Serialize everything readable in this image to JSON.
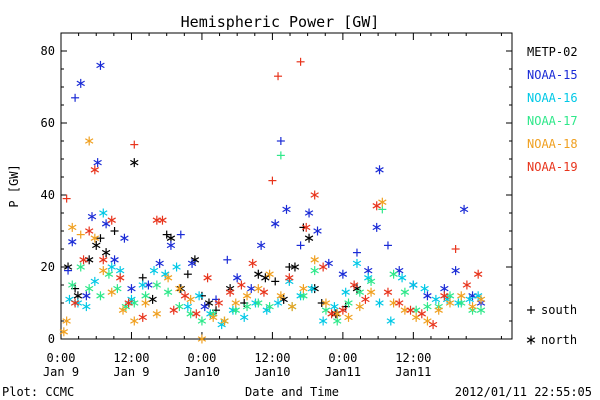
{
  "chart_data": {
    "type": "scatter",
    "title": "Hemispheric Power [GW]",
    "ylabel": "P [GW]",
    "xlabel": "Date and Time",
    "ylim": [
      0,
      85
    ],
    "xlim": [
      0,
      3.2
    ],
    "x_unit": "days since Jan 9 0:00",
    "yticks": [
      "0",
      "20",
      "40",
      "60",
      "80"
    ],
    "yticks_values": [
      0,
      20,
      40,
      60,
      80
    ],
    "xticks": [
      {
        "x": 0.0,
        "time": "0:00",
        "date": "Jan 9"
      },
      {
        "x": 0.5,
        "time": "12:00",
        "date": "Jan 9"
      },
      {
        "x": 1.0,
        "time": "0:00",
        "date": "Jan10"
      },
      {
        "x": 1.5,
        "time": "12:00",
        "date": "Jan10"
      },
      {
        "x": 2.0,
        "time": "0:00",
        "date": "Jan11"
      },
      {
        "x": 2.5,
        "time": "12:00",
        "date": "Jan11"
      }
    ],
    "legend_position": "right",
    "marker_legend": [
      {
        "symbol": "+",
        "label": "south"
      },
      {
        "symbol": "*",
        "label": "north"
      }
    ],
    "series": [
      {
        "name": "METP-02",
        "color": "#000000",
        "points": [
          [
            0.05,
            20,
            "*"
          ],
          [
            0.1,
            14,
            "+"
          ],
          [
            0.12,
            12,
            "*"
          ],
          [
            0.2,
            22,
            "*"
          ],
          [
            0.25,
            26,
            "*"
          ],
          [
            0.28,
            28,
            "+"
          ],
          [
            0.32,
            24,
            "*"
          ],
          [
            0.38,
            30,
            "+"
          ],
          [
            0.52,
            49,
            "*"
          ],
          [
            0.58,
            17,
            "+"
          ],
          [
            0.65,
            11,
            "*"
          ],
          [
            0.75,
            29,
            "+"
          ],
          [
            0.78,
            28,
            "*"
          ],
          [
            0.85,
            14,
            "*"
          ],
          [
            0.9,
            18,
            "+"
          ],
          [
            0.95,
            22,
            "*"
          ],
          [
            1.0,
            12,
            "+"
          ],
          [
            1.05,
            10,
            "*"
          ],
          [
            1.1,
            8,
            "+"
          ],
          [
            1.2,
            14,
            "*"
          ],
          [
            1.3,
            10,
            "+"
          ],
          [
            1.4,
            18,
            "*"
          ],
          [
            1.45,
            17,
            "*"
          ],
          [
            1.52,
            16,
            "+"
          ],
          [
            1.58,
            11,
            "*"
          ],
          [
            1.62,
            20,
            "+"
          ],
          [
            1.66,
            20,
            "*"
          ],
          [
            1.72,
            31,
            "+"
          ],
          [
            1.76,
            28,
            "*"
          ],
          [
            1.8,
            14,
            "*"
          ],
          [
            1.85,
            10,
            "+"
          ],
          [
            1.95,
            7,
            "*"
          ],
          [
            2.02,
            9,
            "+"
          ],
          [
            2.1,
            14,
            "*"
          ]
        ]
      },
      {
        "name": "NOAA-15",
        "color": "#1a2bd6",
        "points": [
          [
            0.05,
            19,
            "+"
          ],
          [
            0.08,
            27,
            "*"
          ],
          [
            0.1,
            67,
            "+"
          ],
          [
            0.14,
            71,
            "*"
          ],
          [
            0.18,
            12,
            "*"
          ],
          [
            0.22,
            34,
            "*"
          ],
          [
            0.26,
            49,
            "*"
          ],
          [
            0.28,
            76,
            "*"
          ],
          [
            0.32,
            32,
            "*"
          ],
          [
            0.38,
            22,
            "*"
          ],
          [
            0.45,
            28,
            "*"
          ],
          [
            0.5,
            14,
            "*"
          ],
          [
            0.62,
            15,
            "*"
          ],
          [
            0.7,
            21,
            "*"
          ],
          [
            0.78,
            26,
            "*"
          ],
          [
            0.85,
            29,
            "+"
          ],
          [
            0.93,
            21,
            "*"
          ],
          [
            1.02,
            9,
            "*"
          ],
          [
            1.1,
            11,
            "+"
          ],
          [
            1.18,
            22,
            "+"
          ],
          [
            1.25,
            17,
            "*"
          ],
          [
            1.35,
            14,
            "*"
          ],
          [
            1.42,
            26,
            "*"
          ],
          [
            1.52,
            32,
            "*"
          ],
          [
            1.56,
            55,
            "+"
          ],
          [
            1.6,
            36,
            "*"
          ],
          [
            1.7,
            26,
            "+"
          ],
          [
            1.76,
            35,
            "*"
          ],
          [
            1.82,
            30,
            "*"
          ],
          [
            1.9,
            21,
            "*"
          ],
          [
            2.0,
            18,
            "*"
          ],
          [
            2.1,
            24,
            "+"
          ],
          [
            2.18,
            19,
            "*"
          ],
          [
            2.24,
            31,
            "*"
          ],
          [
            2.26,
            47,
            "*"
          ],
          [
            2.32,
            26,
            "+"
          ],
          [
            2.4,
            19,
            "*"
          ],
          [
            2.5,
            15,
            "*"
          ],
          [
            2.6,
            12,
            "*"
          ],
          [
            2.72,
            14,
            "*"
          ],
          [
            2.8,
            19,
            "*"
          ],
          [
            2.86,
            36,
            "*"
          ],
          [
            2.92,
            12,
            "*"
          ],
          [
            2.98,
            10,
            "*"
          ]
        ]
      },
      {
        "name": "NOAA-16",
        "color": "#00c8e6",
        "points": [
          [
            0.06,
            11,
            "*"
          ],
          [
            0.12,
            10,
            "*"
          ],
          [
            0.18,
            9,
            "*"
          ],
          [
            0.24,
            16,
            "*"
          ],
          [
            0.3,
            35,
            "*"
          ],
          [
            0.36,
            20,
            "*"
          ],
          [
            0.42,
            19,
            "*"
          ],
          [
            0.5,
            11,
            "*"
          ],
          [
            0.58,
            15,
            "*"
          ],
          [
            0.66,
            19,
            "*"
          ],
          [
            0.74,
            18,
            "*"
          ],
          [
            0.82,
            20,
            "*"
          ],
          [
            0.9,
            9,
            "*"
          ],
          [
            0.98,
            12,
            "*"
          ],
          [
            1.06,
            7,
            "*"
          ],
          [
            1.14,
            4,
            "*"
          ],
          [
            1.22,
            8,
            "*"
          ],
          [
            1.3,
            6,
            "*"
          ],
          [
            1.38,
            10,
            "*"
          ],
          [
            1.46,
            8,
            "*"
          ],
          [
            1.54,
            10,
            "*"
          ],
          [
            1.62,
            16,
            "*"
          ],
          [
            1.7,
            12,
            "*"
          ],
          [
            1.78,
            14,
            "*"
          ],
          [
            1.86,
            5,
            "*"
          ],
          [
            1.94,
            9,
            "*"
          ],
          [
            2.02,
            13,
            "*"
          ],
          [
            2.1,
            21,
            "*"
          ],
          [
            2.18,
            17,
            "*"
          ],
          [
            2.26,
            10,
            "*"
          ],
          [
            2.34,
            5,
            "*"
          ],
          [
            2.42,
            17,
            "*"
          ],
          [
            2.5,
            15,
            "*"
          ],
          [
            2.58,
            14,
            "*"
          ],
          [
            2.66,
            11,
            "*"
          ],
          [
            2.74,
            11,
            "*"
          ],
          [
            2.82,
            10,
            "*"
          ],
          [
            2.9,
            11,
            "*"
          ],
          [
            2.96,
            12,
            "*"
          ]
        ]
      },
      {
        "name": "NOAA-17",
        "color": "#2ee88a",
        "points": [
          [
            0.08,
            15,
            "*"
          ],
          [
            0.14,
            20,
            "*"
          ],
          [
            0.2,
            14,
            "*"
          ],
          [
            0.28,
            12,
            "*"
          ],
          [
            0.34,
            18,
            "*"
          ],
          [
            0.4,
            14,
            "*"
          ],
          [
            0.46,
            9,
            "*"
          ],
          [
            0.52,
            10,
            "*"
          ],
          [
            0.6,
            12,
            "*"
          ],
          [
            0.68,
            15,
            "*"
          ],
          [
            0.76,
            13,
            "*"
          ],
          [
            0.84,
            9,
            "*"
          ],
          [
            0.92,
            7,
            "*"
          ],
          [
            1.0,
            5,
            "*"
          ],
          [
            1.08,
            7,
            "*"
          ],
          [
            1.16,
            5,
            "*"
          ],
          [
            1.24,
            8,
            "*"
          ],
          [
            1.32,
            9,
            "*"
          ],
          [
            1.4,
            10,
            "*"
          ],
          [
            1.48,
            9,
            "*"
          ],
          [
            1.56,
            51,
            "+"
          ],
          [
            1.64,
            9,
            "*"
          ],
          [
            1.72,
            12,
            "*"
          ],
          [
            1.8,
            19,
            "*"
          ],
          [
            1.88,
            8,
            "*"
          ],
          [
            1.96,
            5,
            "*"
          ],
          [
            2.04,
            10,
            "*"
          ],
          [
            2.12,
            13,
            "*"
          ],
          [
            2.2,
            16,
            "*"
          ],
          [
            2.28,
            36,
            "+"
          ],
          [
            2.36,
            18,
            "*"
          ],
          [
            2.44,
            13,
            "*"
          ],
          [
            2.52,
            8,
            "*"
          ],
          [
            2.6,
            9,
            "*"
          ],
          [
            2.68,
            9,
            "*"
          ],
          [
            2.76,
            12,
            "*"
          ],
          [
            2.84,
            10,
            "*"
          ],
          [
            2.92,
            8,
            "*"
          ],
          [
            2.98,
            8,
            "*"
          ]
        ]
      },
      {
        "name": "NOAA-18",
        "color": "#f0a020",
        "points": [
          [
            0.02,
            2,
            "*"
          ],
          [
            0.04,
            5,
            "*"
          ],
          [
            0.08,
            31,
            "*"
          ],
          [
            0.14,
            29,
            "+"
          ],
          [
            0.2,
            55,
            "*"
          ],
          [
            0.24,
            28,
            "*"
          ],
          [
            0.3,
            19,
            "*"
          ],
          [
            0.36,
            13,
            "*"
          ],
          [
            0.44,
            8,
            "*"
          ],
          [
            0.52,
            5,
            "*"
          ],
          [
            0.6,
            10,
            "*"
          ],
          [
            0.68,
            7,
            "*"
          ],
          [
            0.76,
            17,
            "*"
          ],
          [
            0.84,
            14,
            "*"
          ],
          [
            0.92,
            11,
            "*"
          ],
          [
            1.0,
            0,
            "*"
          ],
          [
            1.08,
            6,
            "*"
          ],
          [
            1.16,
            5,
            "*"
          ],
          [
            1.24,
            10,
            "*"
          ],
          [
            1.32,
            12,
            "*"
          ],
          [
            1.4,
            14,
            "*"
          ],
          [
            1.48,
            18,
            "*"
          ],
          [
            1.56,
            12,
            "*"
          ],
          [
            1.64,
            9,
            "*"
          ],
          [
            1.72,
            14,
            "*"
          ],
          [
            1.8,
            22,
            "*"
          ],
          [
            1.88,
            10,
            "*"
          ],
          [
            1.96,
            7,
            "*"
          ],
          [
            2.04,
            6,
            "*"
          ],
          [
            2.12,
            9,
            "*"
          ],
          [
            2.2,
            13,
            "*"
          ],
          [
            2.28,
            38,
            "*"
          ],
          [
            2.36,
            10,
            "*"
          ],
          [
            2.44,
            8,
            "*"
          ],
          [
            2.52,
            6,
            "*"
          ],
          [
            2.6,
            5,
            "*"
          ],
          [
            2.68,
            8,
            "*"
          ],
          [
            2.76,
            10,
            "*"
          ],
          [
            2.84,
            12,
            "*"
          ],
          [
            2.92,
            9,
            "*"
          ],
          [
            2.98,
            11,
            "*"
          ]
        ]
      },
      {
        "name": "NOAA-19",
        "color": "#e8341c",
        "points": [
          [
            0.04,
            39,
            "+"
          ],
          [
            0.1,
            10,
            "*"
          ],
          [
            0.16,
            22,
            "*"
          ],
          [
            0.2,
            30,
            "*"
          ],
          [
            0.24,
            47,
            "*"
          ],
          [
            0.3,
            22,
            "*"
          ],
          [
            0.36,
            33,
            "*"
          ],
          [
            0.42,
            17,
            "*"
          ],
          [
            0.48,
            10,
            "*"
          ],
          [
            0.52,
            54,
            "+"
          ],
          [
            0.58,
            6,
            "*"
          ],
          [
            0.68,
            33,
            "*"
          ],
          [
            0.72,
            33,
            "*"
          ],
          [
            0.8,
            8,
            "*"
          ],
          [
            0.88,
            12,
            "*"
          ],
          [
            0.96,
            7,
            "*"
          ],
          [
            1.04,
            17,
            "*"
          ],
          [
            1.12,
            10,
            "*"
          ],
          [
            1.2,
            13,
            "*"
          ],
          [
            1.28,
            15,
            "*"
          ],
          [
            1.36,
            21,
            "*"
          ],
          [
            1.44,
            13,
            "*"
          ],
          [
            1.5,
            44,
            "+"
          ],
          [
            1.54,
            73,
            "+"
          ],
          [
            1.62,
            17,
            "*"
          ],
          [
            1.7,
            77,
            "+"
          ],
          [
            1.74,
            31,
            "*"
          ],
          [
            1.8,
            40,
            "*"
          ],
          [
            1.86,
            20,
            "*"
          ],
          [
            1.92,
            7,
            "*"
          ],
          [
            2.0,
            8,
            "*"
          ],
          [
            2.08,
            15,
            "*"
          ],
          [
            2.16,
            11,
            "*"
          ],
          [
            2.24,
            37,
            "*"
          ],
          [
            2.32,
            13,
            "*"
          ],
          [
            2.4,
            10,
            "*"
          ],
          [
            2.48,
            8,
            "*"
          ],
          [
            2.56,
            7,
            "*"
          ],
          [
            2.64,
            4,
            "*"
          ],
          [
            2.72,
            12,
            "*"
          ],
          [
            2.8,
            25,
            "+"
          ],
          [
            2.88,
            15,
            "*"
          ],
          [
            2.96,
            18,
            "*"
          ]
        ]
      }
    ]
  },
  "footer": {
    "left": "Plot: CCMC",
    "right": "2012/01/11 22:55:05"
  }
}
